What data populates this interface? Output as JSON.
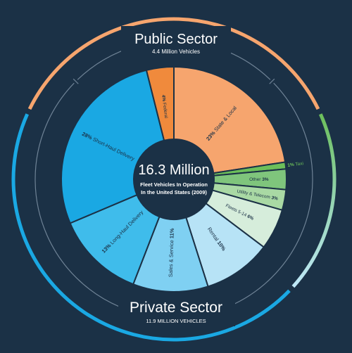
{
  "chart_data": {
    "type": "pie",
    "center_title": "16.3 Million",
    "center_subtitle_lines": [
      "Fleet Vehicles In Operation",
      "In the United States (2009)"
    ],
    "groups": [
      {
        "title": "Public Sector",
        "subtitle": "4.4 Million Vehicles"
      },
      {
        "title": "Private Sector",
        "subtitle": "11.9 MILLION VEHICLES"
      }
    ],
    "slices": [
      {
        "label": "State & Local",
        "value": 23,
        "pct_label": "23%",
        "pct_first": true,
        "color": "#f6a56e",
        "text_color": "#1b3146"
      },
      {
        "label": "Taxi",
        "value": 1,
        "pct_label": "1%",
        "pct_first": true,
        "color": "#6cbf5a",
        "text_color": "#6cbf5a",
        "outside": true
      },
      {
        "label": "Other",
        "value": 3,
        "pct_label": "3%",
        "pct_first": false,
        "color": "#7fc57c",
        "text_color": "#1b3146"
      },
      {
        "label": "Utility & Telecom",
        "value": 3,
        "pct_label": "3%",
        "pct_first": false,
        "color": "#a9d9a4",
        "text_color": "#1b3146"
      },
      {
        "label": "Fleets 5-14",
        "value": 6,
        "pct_label": "6%",
        "pct_first": false,
        "color": "#d6eddb",
        "text_color": "#1b3146"
      },
      {
        "label": "Rental",
        "value": 10,
        "pct_label": "10%",
        "pct_first": false,
        "color": "#b7e3f6",
        "text_color": "#1b3146"
      },
      {
        "label": "Sales & Service",
        "value": 11,
        "pct_label": "11%",
        "pct_first": false,
        "color": "#7fd0f2",
        "text_color": "#1b3146"
      },
      {
        "label": "Long-Haul Delivery",
        "value": 13,
        "pct_label": "13%",
        "pct_first": true,
        "color": "#3fbceb",
        "text_color": "#1b3146"
      },
      {
        "label": "Short-Haul Delivery",
        "value": 28,
        "pct_label": "28%",
        "pct_first": true,
        "color": "#1aa8e3",
        "text_color": "#1b3146"
      },
      {
        "label": "Federal",
        "value": 4,
        "pct_label": "4%",
        "pct_first": true,
        "color": "#f08a3c",
        "text_color": "#1b3146"
      }
    ],
    "colors": {
      "background": "#1b3146",
      "public_arc": "#f6a56e",
      "private_arc": "#1aa8e3",
      "green_arc": "#6cbf5a",
      "inner_rings": "#6f8396",
      "text": "#ffffff"
    }
  }
}
